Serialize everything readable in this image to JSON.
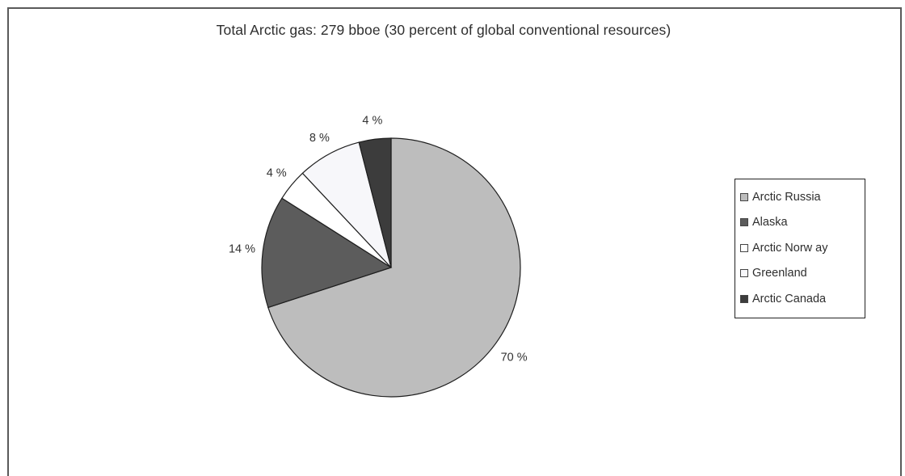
{
  "chart_data": {
    "type": "pie",
    "title": "Total Arctic gas: 279 bboe (30 percent of global conventional resources)",
    "slices": [
      {
        "name": "Arctic Russia",
        "value": 70,
        "label": "70 %",
        "color": "#bdbdbd"
      },
      {
        "name": "Alaska",
        "value": 14,
        "label": "14 %",
        "color": "#5c5c5c"
      },
      {
        "name": "Arctic Norw ay",
        "value": 4,
        "label": "4 %",
        "color": "#ffffff"
      },
      {
        "name": "Greenland",
        "value": 8,
        "label": "8 %",
        "color": "#f7f7fa"
      },
      {
        "name": "Arctic Canada",
        "value": 4,
        "label": "4 %",
        "color": "#3c3c3c"
      }
    ],
    "legend_position": "right",
    "start_position": "top",
    "direction": "clockwise"
  }
}
